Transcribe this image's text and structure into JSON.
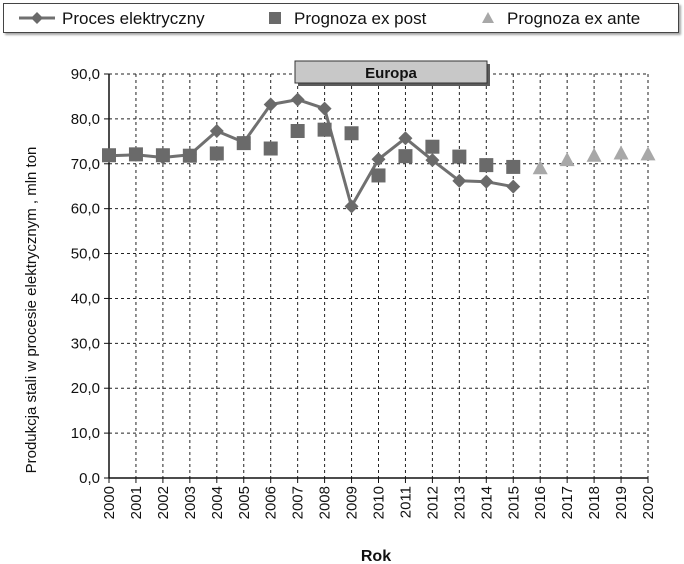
{
  "chart_data": {
    "type": "line",
    "title": "Europa",
    "xlabel": "Rok",
    "ylabel": "Produkcja stali w procesie elektrycznym , mln ton",
    "ylim": [
      0,
      90
    ],
    "yticks": [
      "0,0",
      "10,0",
      "20,0",
      "30,0",
      "40,0",
      "50,0",
      "60,0",
      "70,0",
      "80,0",
      "90,0"
    ],
    "categories": [
      "2000",
      "2001",
      "2002",
      "2003",
      "2004",
      "2005",
      "2006",
      "2007",
      "2008",
      "2009",
      "2010",
      "2011",
      "2012",
      "2013",
      "2014",
      "2015",
      "2016",
      "2017",
      "2018",
      "2019",
      "2020"
    ],
    "grid": true,
    "legend_position": "top",
    "series": [
      {
        "name": "Proces elektryczny",
        "marker": "diamond",
        "color": "#707070",
        "values": [
          71.8,
          72.0,
          71.4,
          72.0,
          77.3,
          74.8,
          83.2,
          84.3,
          82.3,
          60.5,
          71.0,
          75.7,
          70.8,
          66.2,
          66.0,
          64.9,
          null,
          null,
          null,
          null,
          null
        ]
      },
      {
        "name": "Prognoza ex post",
        "marker": "square",
        "color": "#6a6a6a",
        "values": [
          71.9,
          72.1,
          71.9,
          71.8,
          72.3,
          74.6,
          73.4,
          77.3,
          77.6,
          76.8,
          67.4,
          71.7,
          73.8,
          71.6,
          69.7,
          69.3,
          null,
          null,
          null,
          null,
          null
        ]
      },
      {
        "name": "Prognoza ex ante",
        "marker": "triangle",
        "color": "#a8a8a8",
        "values": [
          null,
          null,
          null,
          null,
          null,
          null,
          null,
          null,
          null,
          null,
          null,
          null,
          null,
          null,
          null,
          null,
          69.0,
          70.8,
          71.8,
          72.3,
          72.1
        ]
      }
    ]
  }
}
